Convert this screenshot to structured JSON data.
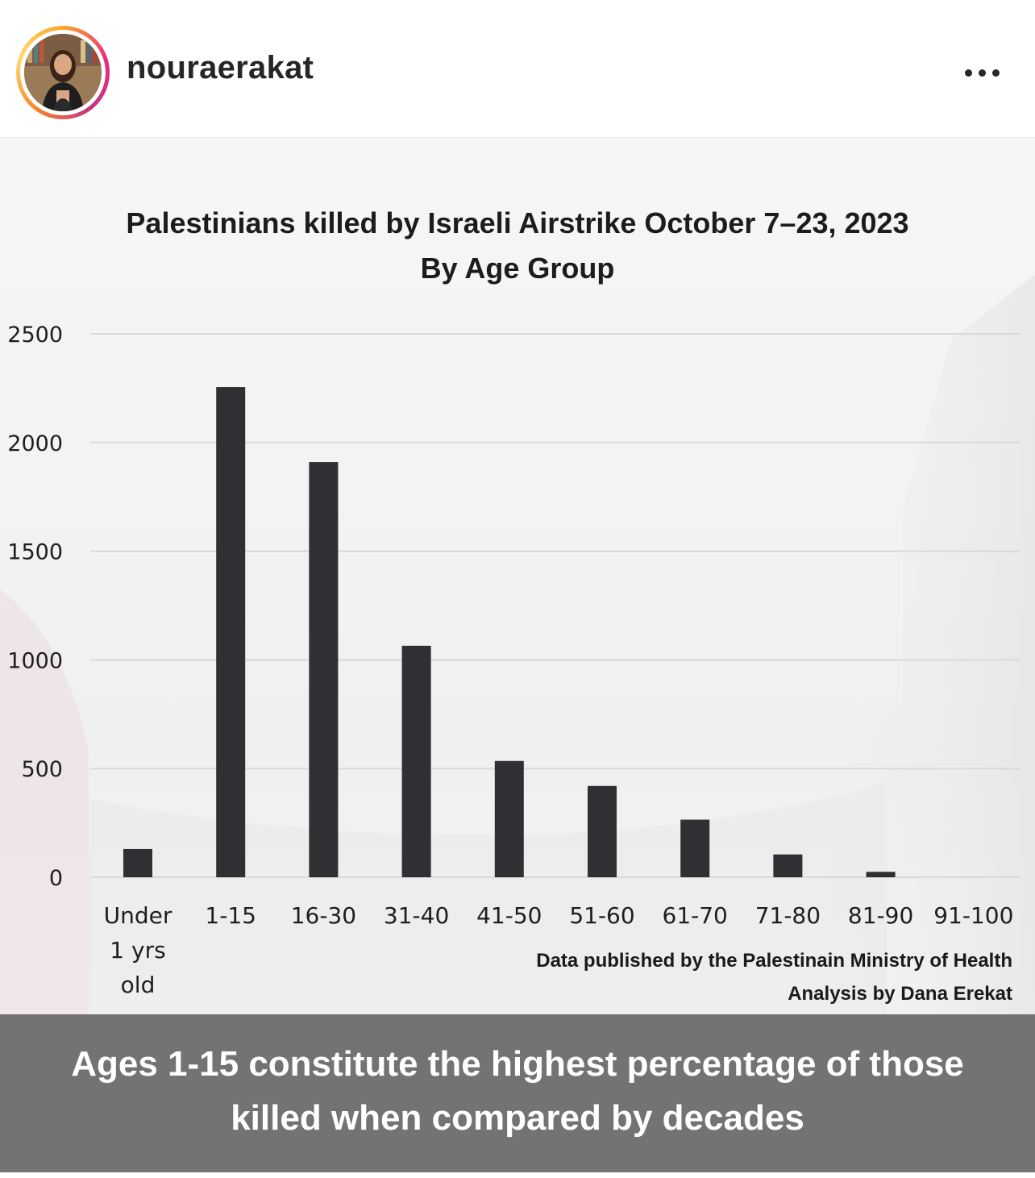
{
  "post": {
    "username": "nouraerakat",
    "more_icon": "more-horizontal-icon"
  },
  "chart_data": {
    "type": "bar",
    "title_line1": "Palestinians killed by Israeli Airstrike October 7–23, 2023",
    "title_line2": "By Age Group",
    "categories": [
      [
        "Under",
        "1 yrs",
        "old"
      ],
      [
        "1-15"
      ],
      [
        "16-30"
      ],
      [
        "31-40"
      ],
      [
        "41-50"
      ],
      [
        "51-60"
      ],
      [
        "61-70"
      ],
      [
        "71-80"
      ],
      [
        "81-90"
      ],
      [
        "91-100"
      ]
    ],
    "values": [
      130,
      2255,
      1910,
      1065,
      535,
      420,
      265,
      105,
      25,
      0
    ],
    "ylim": [
      0,
      2500
    ],
    "yticks": [
      "0",
      "500",
      "1000",
      "1500",
      "2000",
      "2500"
    ],
    "grid": true,
    "bar_color": "#2f3034",
    "grid_color": "#d9d9d9"
  },
  "source": {
    "line1": "Data published by the Palestinain Ministry of Health",
    "line2": "Analysis by Dana Erekat"
  },
  "caption": {
    "line1": "Ages 1-15 constitute the highest percentage of those",
    "line2": "killed when compared by decades"
  }
}
